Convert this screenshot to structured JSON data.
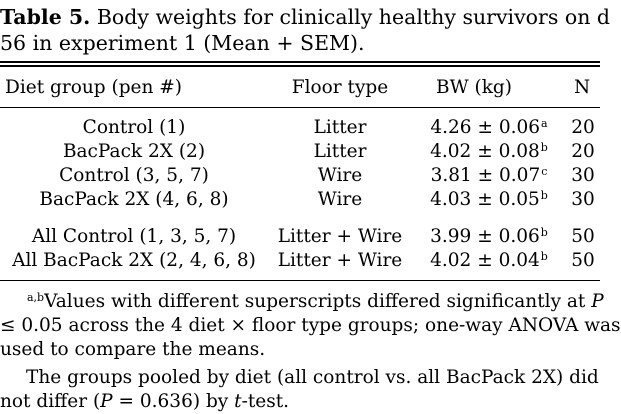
{
  "caption": {
    "label": "Table 5.",
    "line1": "Body weights for clinically healthy survivors on d",
    "line2": "56 in experiment 1 (Mean + SEM)."
  },
  "columns": [
    "Diet group (pen #)",
    "Floor type",
    "BW (kg)",
    "N"
  ],
  "rows": [
    {
      "group": "Control (1)",
      "floor": "Litter",
      "bw": "4.26 ± 0.06",
      "sup": "a",
      "n": "20"
    },
    {
      "group": "BacPack 2X (2)",
      "floor": "Litter",
      "bw": "4.02 ± 0.08",
      "sup": "b",
      "n": "20"
    },
    {
      "group": "Control (3, 5, 7)",
      "floor": "Wire",
      "bw": "3.81 ± 0.07",
      "sup": "c",
      "n": "30"
    },
    {
      "group": "BacPack 2X (4, 6, 8)",
      "floor": "Wire",
      "bw": "4.03 ± 0.05",
      "sup": "b",
      "n": "30"
    },
    {
      "group": "All Control (1, 3, 5, 7)",
      "floor": "Litter + Wire",
      "bw": "3.99 ± 0.06",
      "sup": "b",
      "n": "50"
    },
    {
      "group": "All BacPack 2X (2, 4, 6, 8)",
      "floor": "Litter + Wire",
      "bw": "4.02 ± 0.04",
      "sup": "b",
      "n": "50"
    }
  ],
  "footnotes": {
    "note1_sup": "a,b",
    "note1_line1": "Values with different superscripts differed significantly at ",
    "note1_p": "P",
    "note1_line2": "≤ 0.05 across the 4 diet × floor type groups; one-way ANOVA was",
    "note1_line3": "used to compare the means.",
    "note2_line1": "The groups pooled by diet (all control vs. all BacPack 2X) did",
    "note2_line2_pre": "not differ (",
    "note2_p": "P",
    "note2_line2_mid": " = 0.636) by ",
    "note2_t": "t",
    "note2_line2_post": "-test."
  }
}
